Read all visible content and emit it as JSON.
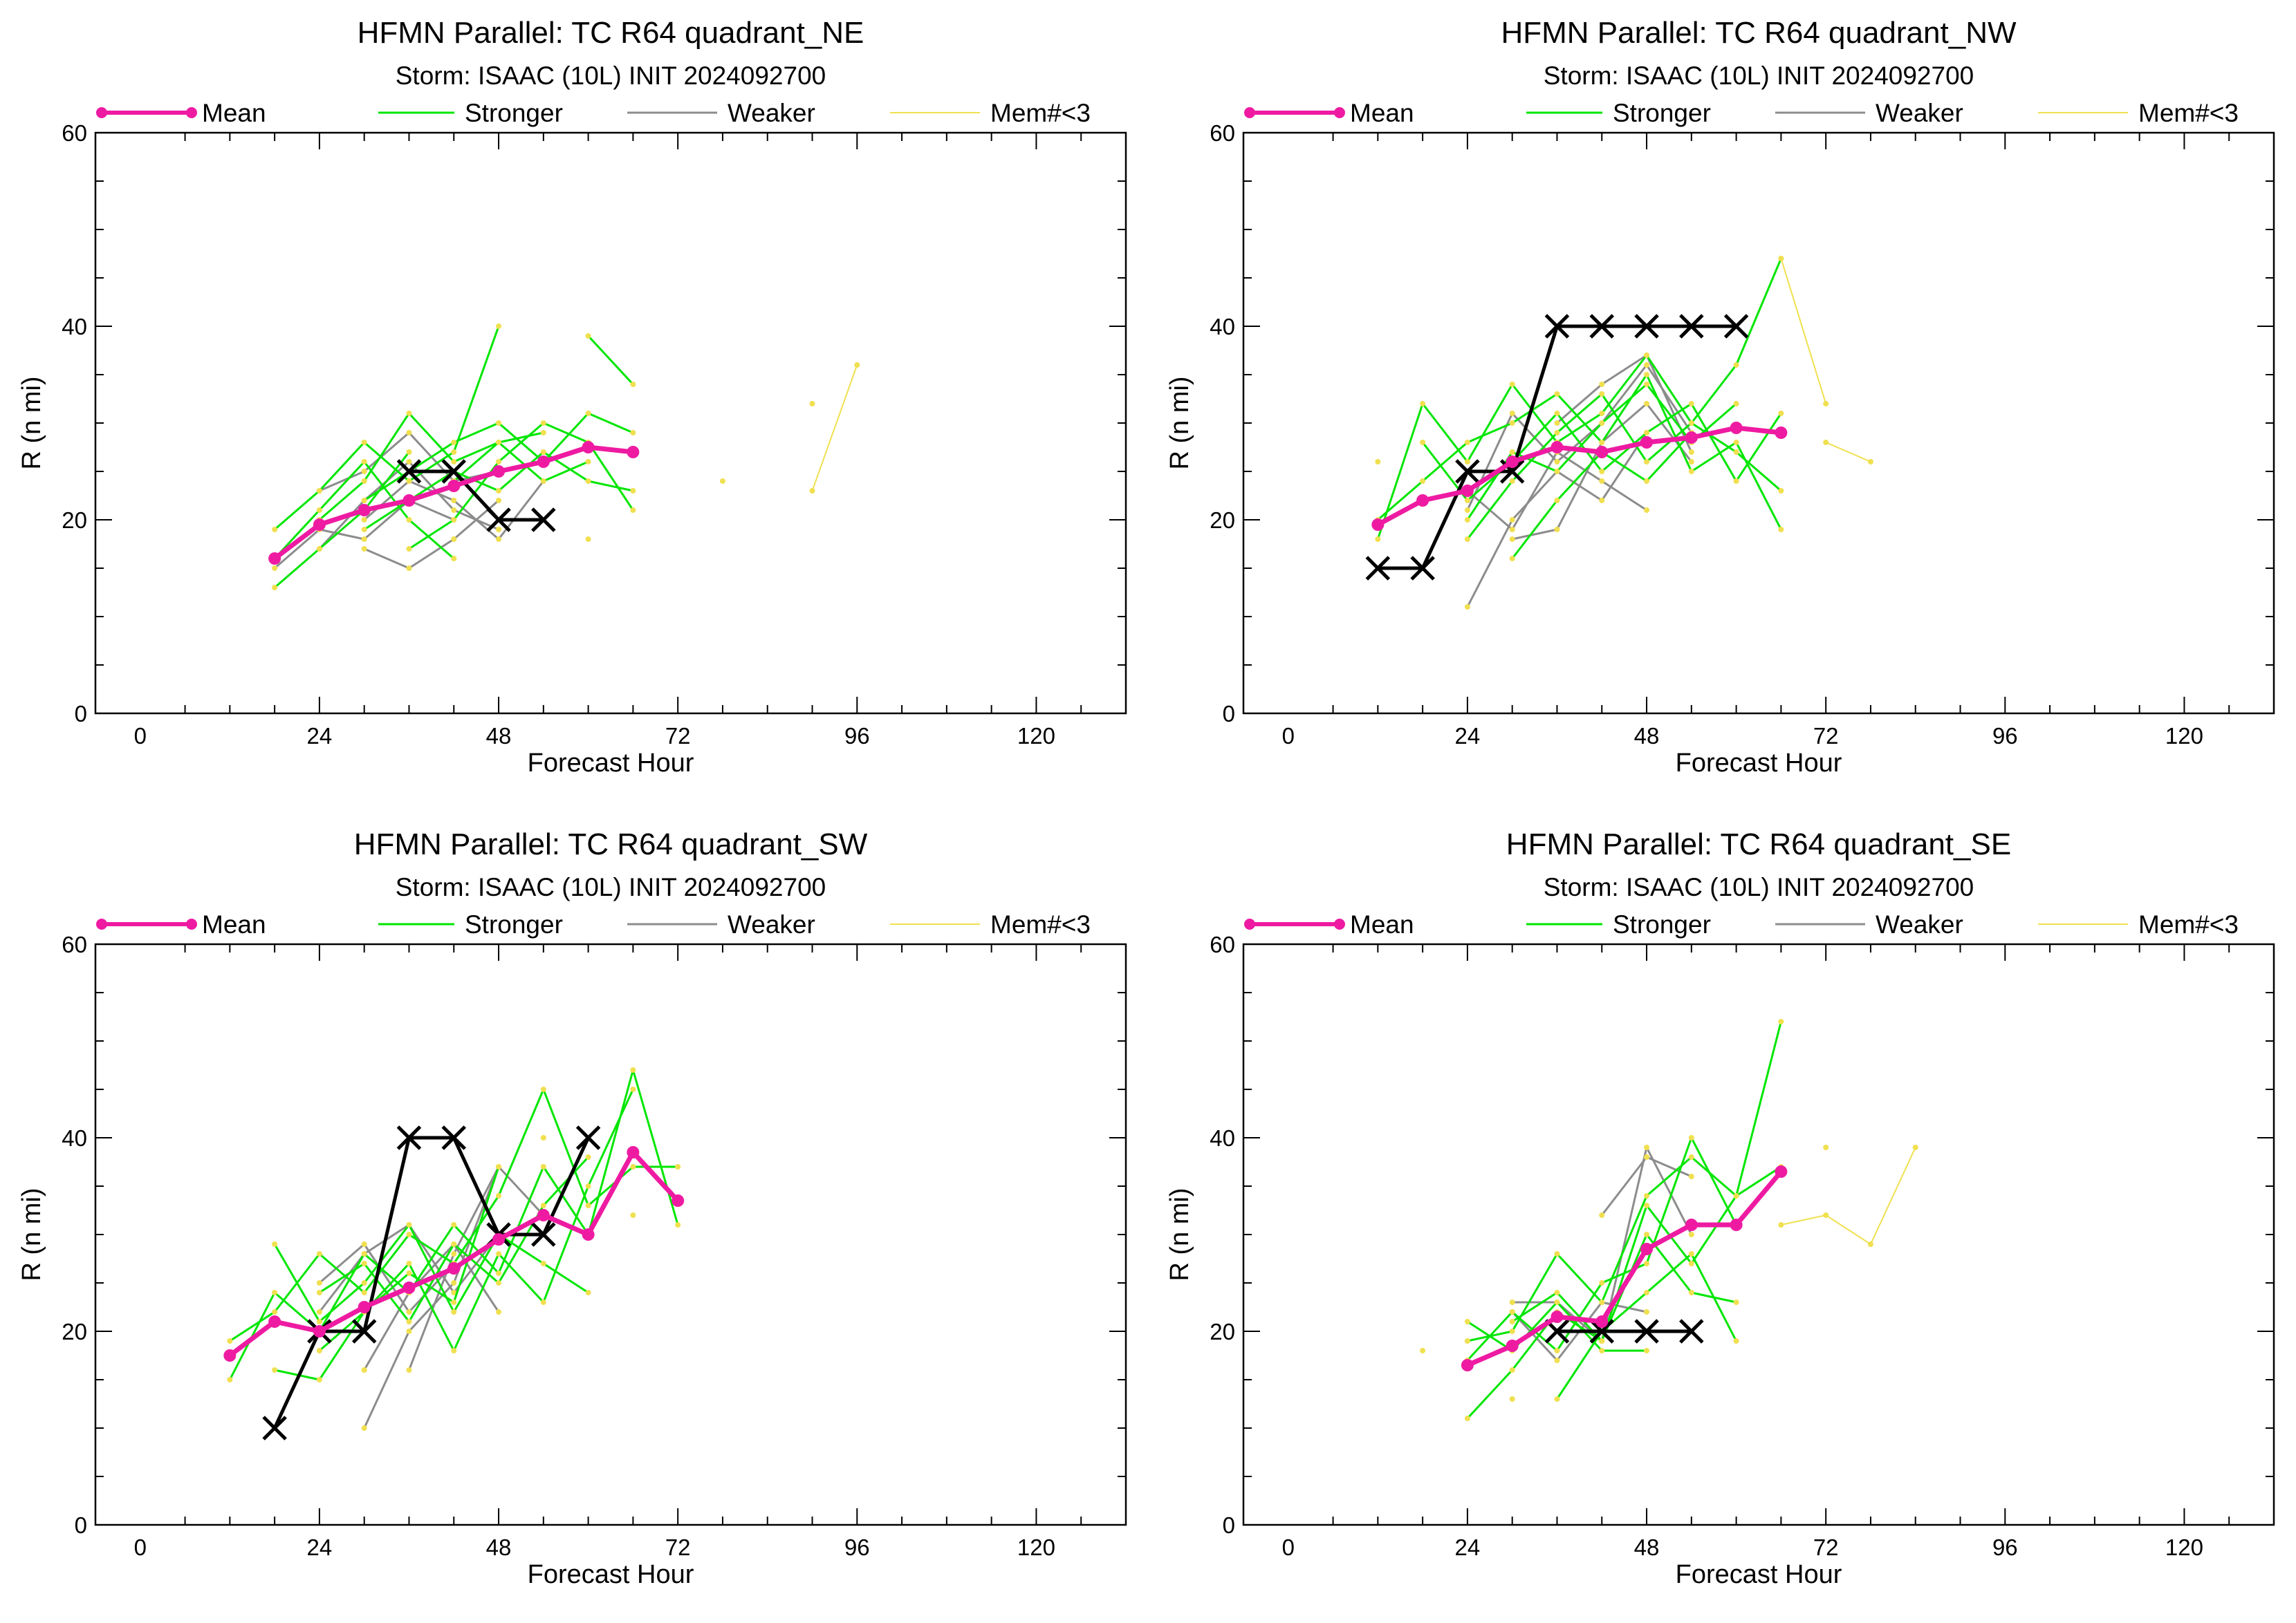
{
  "colors": {
    "mean": "#ee1ba2",
    "stronger": "#00e600",
    "weaker": "#8c8c8c",
    "few_members": "#f0e050",
    "best_track": "#000000",
    "axis": "#000000"
  },
  "legend": {
    "mean": "Mean",
    "stronger": "Stronger",
    "weaker": "Weaker",
    "few_members": "Mem#<3"
  },
  "chart_data": [
    {
      "type": "line",
      "title": "HFMN Parallel: TC  R64 quadrant_NE",
      "subtitle": "Storm: ISAAC (10L) INIT 2024092700",
      "xlabel": "Forecast Hour",
      "ylabel": "R (n mi)",
      "xlim": [
        -6,
        132
      ],
      "ylim": [
        0,
        60
      ],
      "xticks": [
        0,
        24,
        48,
        72,
        96,
        120
      ],
      "yticks": [
        0,
        20,
        40,
        60
      ],
      "mean": {
        "name": "Mean",
        "x": [
          18,
          24,
          30,
          36,
          42,
          48,
          54,
          60,
          66
        ],
        "y": [
          16,
          19.5,
          21,
          22,
          23.5,
          25,
          26,
          27.5,
          27
        ]
      },
      "best_track": {
        "x": [
          36,
          42,
          48,
          54
        ],
        "y": [
          25,
          25,
          20,
          20
        ]
      },
      "stronger": [
        {
          "x": [
            18,
            24,
            30,
            36
          ],
          "y": [
            13,
            17,
            21,
            27
          ]
        },
        {
          "x": [
            18,
            24,
            30,
            36,
            42,
            48
          ],
          "y": [
            19,
            23,
            28,
            24,
            27,
            40
          ]
        },
        {
          "x": [
            24,
            30,
            36,
            42,
            48,
            54
          ],
          "y": [
            20,
            24,
            31,
            26,
            28,
            29
          ]
        },
        {
          "x": [
            30,
            36,
            42,
            48,
            54,
            60,
            66
          ],
          "y": [
            22,
            25,
            28,
            30,
            26,
            31,
            29
          ]
        },
        {
          "x": [
            30,
            36,
            42,
            48,
            54,
            60,
            66
          ],
          "y": [
            19,
            22,
            25,
            23,
            27,
            24,
            23
          ]
        },
        {
          "x": [
            36,
            42,
            48,
            54,
            60,
            66
          ],
          "y": [
            17,
            20,
            26,
            30,
            28,
            21
          ]
        },
        {
          "x": [
            60,
            66
          ],
          "y": [
            39,
            34
          ]
        },
        {
          "x": [
            18,
            24,
            30,
            36,
            42
          ],
          "y": [
            16,
            21,
            26,
            20,
            16
          ]
        },
        {
          "x": [
            42,
            48,
            54,
            60
          ],
          "y": [
            24,
            28,
            24,
            26
          ]
        }
      ],
      "weaker": [
        {
          "x": [
            18,
            24,
            30,
            36,
            42
          ],
          "y": [
            15,
            19,
            18,
            22,
            20
          ]
        },
        {
          "x": [
            24,
            30,
            36,
            42,
            48
          ],
          "y": [
            23,
            25,
            29,
            24,
            25
          ]
        },
        {
          "x": [
            30,
            36,
            42,
            48
          ],
          "y": [
            17,
            15,
            18,
            22
          ]
        },
        {
          "x": [
            30,
            36,
            42,
            48,
            54
          ],
          "y": [
            20,
            24,
            22,
            18,
            24
          ]
        },
        {
          "x": [
            24,
            30,
            36,
            42,
            48
          ],
          "y": [
            17,
            22,
            26,
            21,
            19
          ]
        }
      ],
      "few_members": [
        {
          "x": [
            90,
            96
          ],
          "y": [
            23,
            36
          ]
        },
        {
          "x": [
            90
          ],
          "y": [
            32
          ]
        },
        {
          "x": [
            78
          ],
          "y": [
            24
          ]
        },
        {
          "x": [
            60
          ],
          "y": [
            18
          ]
        }
      ]
    },
    {
      "type": "line",
      "title": "HFMN Parallel: TC  R64 quadrant_NW",
      "subtitle": "Storm: ISAAC (10L) INIT 2024092700",
      "xlabel": "Forecast Hour",
      "ylabel": "R (n mi)",
      "xlim": [
        -6,
        132
      ],
      "ylim": [
        0,
        60
      ],
      "xticks": [
        0,
        24,
        48,
        72,
        96,
        120
      ],
      "yticks": [
        0,
        20,
        40,
        60
      ],
      "mean": {
        "name": "Mean",
        "x": [
          12,
          18,
          24,
          30,
          36,
          42,
          48,
          54,
          60,
          66
        ],
        "y": [
          19.5,
          22,
          23,
          26,
          27.5,
          27,
          28,
          28.5,
          29.5,
          29
        ]
      },
      "best_track": {
        "x": [
          12,
          18,
          24,
          30,
          36,
          42,
          48,
          54,
          60
        ],
        "y": [
          15,
          15,
          25,
          25,
          40,
          40,
          40,
          40,
          40
        ]
      },
      "stronger": [
        {
          "x": [
            12,
            18,
            24,
            30,
            36,
            42,
            48,
            54,
            60,
            66
          ],
          "y": [
            18,
            32,
            26,
            34,
            28,
            31,
            37,
            30,
            36,
            47
          ]
        },
        {
          "x": [
            12,
            18,
            24,
            30,
            36,
            42,
            48,
            54,
            60,
            66
          ],
          "y": [
            20,
            24,
            28,
            30,
            33,
            28,
            35,
            25,
            28,
            19
          ]
        },
        {
          "x": [
            18,
            24,
            30,
            36,
            42,
            48,
            54,
            60,
            66
          ],
          "y": [
            28,
            22,
            26,
            31,
            25,
            29,
            32,
            24,
            31
          ]
        },
        {
          "x": [
            24,
            30,
            36,
            42,
            48,
            54,
            60,
            66
          ],
          "y": [
            18,
            24,
            29,
            33,
            26,
            30,
            27,
            23
          ]
        },
        {
          "x": [
            24,
            30,
            36,
            42,
            48,
            54,
            60
          ],
          "y": [
            20,
            27,
            25,
            30,
            34,
            28,
            32
          ]
        },
        {
          "x": [
            30,
            36,
            42,
            48,
            54
          ],
          "y": [
            16,
            22,
            27,
            24,
            29
          ]
        }
      ],
      "weaker": [
        {
          "x": [
            24,
            30,
            36,
            42,
            48
          ],
          "y": [
            11,
            20,
            25,
            22,
            29
          ]
        },
        {
          "x": [
            24,
            30,
            36,
            42,
            48,
            54
          ],
          "y": [
            21,
            31,
            26,
            30,
            36,
            29
          ]
        },
        {
          "x": [
            24,
            30,
            36,
            42,
            48
          ],
          "y": [
            23,
            19,
            27,
            24,
            21
          ]
        },
        {
          "x": [
            30,
            36,
            42,
            48,
            54
          ],
          "y": [
            18,
            19,
            28,
            32,
            26
          ]
        },
        {
          "x": [
            36,
            42,
            48,
            54
          ],
          "y": [
            30,
            34,
            37,
            27
          ]
        }
      ],
      "few_members": [
        {
          "x": [
            66,
            72
          ],
          "y": [
            47,
            32
          ]
        },
        {
          "x": [
            72,
            78
          ],
          "y": [
            28,
            26
          ]
        },
        {
          "x": [
            12
          ],
          "y": [
            26
          ]
        }
      ]
    },
    {
      "type": "line",
      "title": "HFMN Parallel: TC  R64 quadrant_SW",
      "subtitle": "Storm: ISAAC (10L) INIT 2024092700",
      "xlabel": "Forecast Hour",
      "ylabel": "R (n mi)",
      "xlim": [
        -6,
        132
      ],
      "ylim": [
        0,
        60
      ],
      "xticks": [
        0,
        24,
        48,
        72,
        96,
        120
      ],
      "yticks": [
        0,
        20,
        40,
        60
      ],
      "mean": {
        "name": "Mean",
        "x": [
          12,
          18,
          24,
          30,
          36,
          42,
          48,
          54,
          60,
          66,
          72
        ],
        "y": [
          17.5,
          21,
          20,
          22.5,
          24.5,
          26.5,
          29.5,
          32,
          30,
          38.5,
          33.5
        ]
      },
      "best_track": {
        "x": [
          18,
          24,
          30,
          36,
          42,
          48,
          54,
          60
        ],
        "y": [
          10,
          20,
          20,
          40,
          40,
          30,
          30,
          40
        ]
      },
      "stronger": [
        {
          "x": [
            12,
            18,
            24,
            30,
            36,
            42,
            48,
            54,
            60,
            66,
            72
          ],
          "y": [
            15,
            24,
            20,
            28,
            24,
            31,
            26,
            37,
            30,
            47,
            31
          ]
        },
        {
          "x": [
            12,
            18,
            24,
            30,
            36,
            42,
            48,
            54,
            60,
            66,
            72
          ],
          "y": [
            19,
            22,
            28,
            24,
            30,
            27,
            34,
            45,
            33,
            37,
            37
          ]
        },
        {
          "x": [
            18,
            24,
            30,
            36,
            42,
            48,
            54,
            60
          ],
          "y": [
            29,
            21,
            25,
            31,
            22,
            30,
            27,
            24
          ]
        },
        {
          "x": [
            18,
            24,
            30,
            36,
            42,
            48,
            54,
            60,
            66
          ],
          "y": [
            16,
            15,
            22,
            27,
            18,
            28,
            23,
            35,
            45
          ]
        },
        {
          "x": [
            24,
            30,
            36,
            42,
            48,
            54,
            60
          ],
          "y": [
            24,
            27,
            21,
            29,
            25,
            33,
            38
          ]
        },
        {
          "x": [
            24,
            30,
            36,
            42,
            48
          ],
          "y": [
            18,
            22,
            26,
            23,
            37
          ]
        }
      ],
      "weaker": [
        {
          "x": [
            30,
            36,
            42,
            48
          ],
          "y": [
            10,
            20,
            25,
            37
          ]
        },
        {
          "x": [
            24,
            30,
            36,
            42,
            48
          ],
          "y": [
            22,
            28,
            31,
            24,
            30
          ]
        },
        {
          "x": [
            30,
            36,
            42,
            48
          ],
          "y": [
            16,
            24,
            29,
            22
          ]
        },
        {
          "x": [
            36,
            42,
            48,
            54
          ],
          "y": [
            16,
            28,
            37,
            32
          ]
        },
        {
          "x": [
            24,
            30,
            36,
            42
          ],
          "y": [
            25,
            29,
            22,
            27
          ]
        }
      ],
      "few_members": [
        {
          "x": [
            66
          ],
          "y": [
            32
          ]
        },
        {
          "x": [
            54
          ],
          "y": [
            40
          ]
        }
      ]
    },
    {
      "type": "line",
      "title": "HFMN Parallel: TC  R64 quadrant_SE",
      "subtitle": "Storm: ISAAC (10L) INIT 2024092700",
      "xlabel": "Forecast Hour",
      "ylabel": "R (n mi)",
      "xlim": [
        -6,
        132
      ],
      "ylim": [
        0,
        60
      ],
      "xticks": [
        0,
        24,
        48,
        72,
        96,
        120
      ],
      "yticks": [
        0,
        20,
        40,
        60
      ],
      "mean": {
        "name": "Mean",
        "x": [
          24,
          30,
          36,
          42,
          48,
          54,
          60,
          66
        ],
        "y": [
          16.5,
          18.5,
          21.5,
          21,
          28.5,
          31,
          31,
          36.5
        ]
      },
      "best_track": {
        "x": [
          36,
          42,
          48,
          54
        ],
        "y": [
          20,
          20,
          20,
          20
        ]
      },
      "stronger": [
        {
          "x": [
            24,
            30,
            36,
            42,
            48,
            54,
            60,
            66
          ],
          "y": [
            11,
            16,
            22,
            19,
            33,
            27,
            34,
            52
          ]
        },
        {
          "x": [
            24,
            30,
            36,
            42,
            48,
            54,
            60,
            66
          ],
          "y": [
            19,
            20,
            28,
            23,
            34,
            38,
            34,
            37
          ]
        },
        {
          "x": [
            24,
            30,
            36,
            42,
            48,
            54,
            60
          ],
          "y": [
            17,
            22,
            18,
            25,
            27,
            40,
            31
          ]
        },
        {
          "x": [
            30,
            36,
            42,
            48,
            54,
            60
          ],
          "y": [
            21,
            24,
            19,
            30,
            24,
            23
          ]
        },
        {
          "x": [
            36,
            42,
            48,
            54,
            60
          ],
          "y": [
            13,
            20,
            24,
            28,
            19
          ]
        },
        {
          "x": [
            24,
            30,
            36,
            42,
            48
          ],
          "y": [
            21,
            18,
            23,
            18,
            18
          ]
        }
      ],
      "weaker": [
        {
          "x": [
            30,
            36,
            42,
            48,
            54
          ],
          "y": [
            23,
            23,
            19,
            39,
            30
          ]
        },
        {
          "x": [
            42,
            48,
            54
          ],
          "y": [
            32,
            38,
            36
          ]
        },
        {
          "x": [
            30,
            36,
            42,
            48
          ],
          "y": [
            22,
            17,
            23,
            22
          ]
        }
      ],
      "few_members": [
        {
          "x": [
            66,
            72,
            78,
            84
          ],
          "y": [
            31,
            32,
            29,
            39
          ]
        },
        {
          "x": [
            72
          ],
          "y": [
            39
          ]
        },
        {
          "x": [
            18
          ],
          "y": [
            18
          ]
        },
        {
          "x": [
            30
          ],
          "y": [
            13
          ]
        }
      ]
    }
  ]
}
